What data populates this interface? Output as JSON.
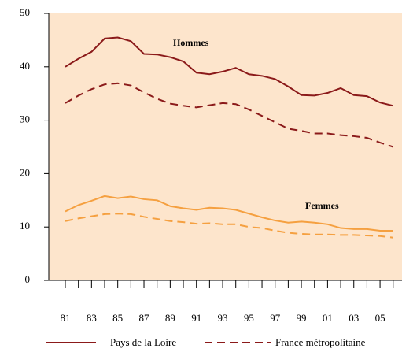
{
  "chart_data": {
    "type": "line",
    "categories": [
      "81",
      null,
      "83",
      null,
      "85",
      null,
      "87",
      null,
      "89",
      null,
      "91",
      null,
      "93",
      null,
      "95",
      null,
      "97",
      null,
      "99",
      null,
      "01",
      null,
      "03",
      null,
      "05",
      null
    ],
    "ylim": [
      0,
      50
    ],
    "yticks": [
      0,
      10,
      20,
      30,
      40,
      50
    ],
    "annotations": [
      {
        "text": "Hommes"
      },
      {
        "text": "Femmes"
      }
    ],
    "series": [
      {
        "name": "Pays de la Loire",
        "color": "#8b1a1a",
        "dash": false,
        "values": [
          40,
          41.5,
          42.8,
          45.3,
          45.5,
          44.8,
          42.4,
          42.3,
          41.8,
          41,
          38.9,
          38.6,
          39.1,
          39.8,
          38.6,
          38.3,
          37.7,
          36.3,
          34.7,
          34.6,
          35.1,
          36,
          34.7,
          34.5,
          33.3,
          32.7
        ]
      },
      {
        "name": "France métropolitaine",
        "color": "#8b1a1a",
        "dash": true,
        "values": [
          33.2,
          34.6,
          35.8,
          36.7,
          36.9,
          36.5,
          35.2,
          34,
          33.1,
          32.7,
          32.4,
          32.8,
          33.2,
          33,
          32,
          30.8,
          29.6,
          28.4,
          28,
          27.5,
          27.5,
          27.2,
          27,
          26.7,
          25.8,
          25
        ]
      },
      {
        "name": "Pays de la Loire",
        "color": "#f5a040",
        "dash": false,
        "values": [
          12.9,
          14.1,
          14.9,
          15.8,
          15.4,
          15.7,
          15.2,
          15,
          13.9,
          13.5,
          13.2,
          13.6,
          13.5,
          13.2,
          12.5,
          11.8,
          11.2,
          10.8,
          11,
          10.8,
          10.5,
          9.8,
          9.6,
          9.6,
          9.3,
          9.3
        ]
      },
      {
        "name": "France métropolitaine",
        "color": "#f5a040",
        "dash": true,
        "values": [
          11.1,
          11.6,
          12,
          12.4,
          12.5,
          12.4,
          11.9,
          11.5,
          11.1,
          10.9,
          10.6,
          10.7,
          10.5,
          10.5,
          10,
          9.8,
          9.3,
          8.9,
          8.7,
          8.6,
          8.6,
          8.5,
          8.5,
          8.4,
          8.3,
          8.0
        ]
      }
    ]
  }
}
